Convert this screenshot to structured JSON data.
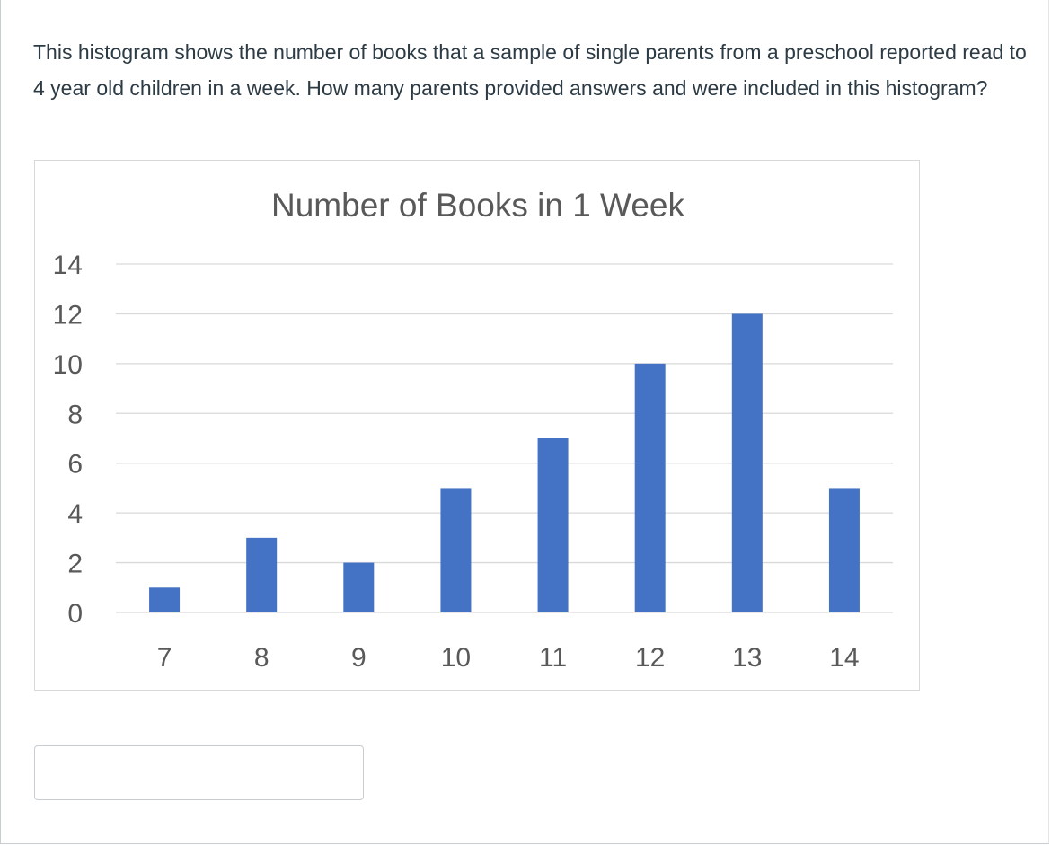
{
  "question": {
    "text": "This histogram shows the number of books that a sample of single parents from a preschool reported read to 4 year old children in a week.  How many parents provided answers and were included in this histogram?"
  },
  "answer": {
    "value": "",
    "placeholder": ""
  },
  "chart_data": {
    "type": "bar",
    "title": "Number of Books in 1 Week",
    "xlabel": "",
    "ylabel": "",
    "categories": [
      "7",
      "8",
      "9",
      "10",
      "11",
      "12",
      "13",
      "14"
    ],
    "values": [
      1,
      3,
      2,
      5,
      7,
      10,
      12,
      5
    ],
    "ylim": [
      0,
      14
    ],
    "yticks": [
      "0",
      "2",
      "4",
      "6",
      "8",
      "10",
      "12",
      "14"
    ],
    "grid": true,
    "legend": "none",
    "bar_color": "#4472c4",
    "grid_color": "#d9d9d9",
    "text_color": "#595959"
  }
}
